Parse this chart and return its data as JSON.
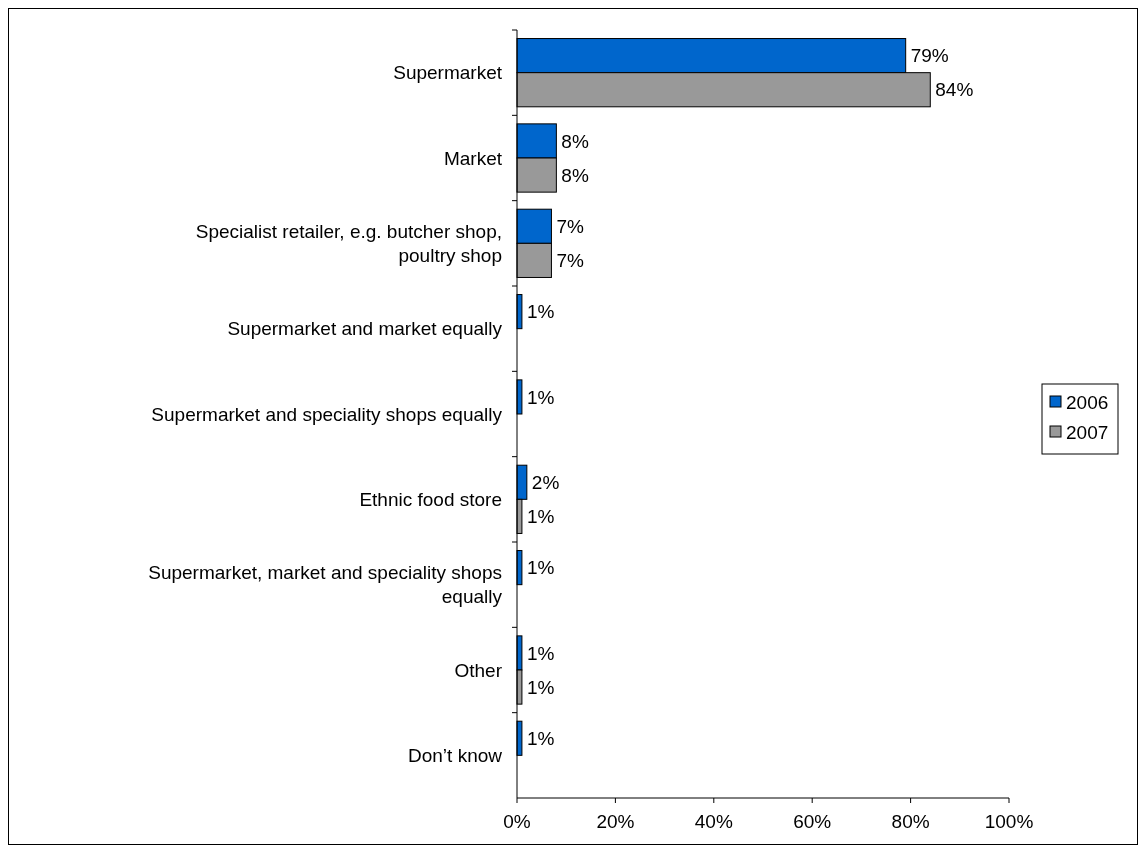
{
  "chart_data": {
    "type": "bar",
    "orientation": "horizontal",
    "categories": [
      "Supermarket",
      "Market",
      "Specialist retailer, e.g. butcher shop, poultry shop",
      "Supermarket and market equally",
      "Supermarket and speciality shops equally",
      "Ethnic food store",
      "Supermarket, market and speciality shops equally",
      "Other",
      "Don’t know"
    ],
    "series": [
      {
        "name": "2006",
        "color": "#0066cc",
        "values": [
          79,
          8,
          7,
          1,
          1,
          2,
          1,
          1,
          1
        ],
        "value_labels": [
          "79%",
          "8%",
          "7%",
          "1%",
          "1%",
          "2%",
          "1%",
          "1%",
          "1%"
        ]
      },
      {
        "name": "2007",
        "color": "#999999",
        "values": [
          84,
          8,
          7,
          null,
          null,
          1,
          null,
          1,
          null
        ],
        "value_labels": [
          "84%",
          "8%",
          "7%",
          null,
          null,
          "1%",
          null,
          "1%",
          null
        ]
      }
    ],
    "xlim": [
      0,
      100
    ],
    "xticks": [
      {
        "value": 0,
        "label": "0%"
      },
      {
        "value": 20,
        "label": "20%"
      },
      {
        "value": 40,
        "label": "40%"
      },
      {
        "value": 60,
        "label": "60%"
      },
      {
        "value": 80,
        "label": "80%"
      },
      {
        "value": 100,
        "label": "100%"
      }
    ],
    "grid": false,
    "legend": "right"
  }
}
